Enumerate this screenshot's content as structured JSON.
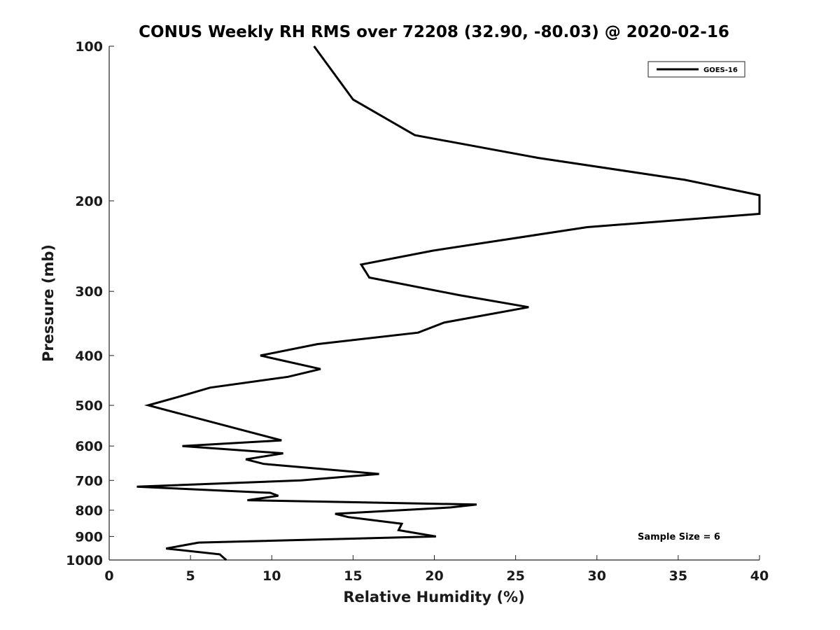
{
  "chart_data": {
    "type": "line",
    "title": "CONUS Weekly RH RMS over 72208 (32.90, -80.03) @ 2020-02-16",
    "xlabel": "Relative Humidity (%)",
    "ylabel": "Pressure (mb)",
    "xlim": [
      0,
      40
    ],
    "ylim": [
      100,
      1000
    ],
    "y_scale": "log",
    "y_reversed": true,
    "grid": false,
    "legend_position": "top-right",
    "x_ticks": [
      0,
      5,
      10,
      15,
      20,
      25,
      30,
      35,
      40
    ],
    "x_tick_labels": [
      "0",
      "5",
      "10",
      "15",
      "20",
      "25",
      "30",
      "35",
      "40"
    ],
    "y_ticks": [
      100,
      200,
      300,
      400,
      500,
      600,
      700,
      800,
      900,
      1000
    ],
    "y_tick_labels": [
      "100",
      "200",
      "300",
      "400",
      "500",
      "600",
      "700",
      "800",
      "900",
      "1000"
    ],
    "series": [
      {
        "name": "GOES-16",
        "color": "#000000",
        "points": [
          [
            7.2,
            1000
          ],
          [
            6.8,
            975
          ],
          [
            3.5,
            950
          ],
          [
            5.5,
            925
          ],
          [
            20.1,
            900
          ],
          [
            17.8,
            875
          ],
          [
            18.0,
            850
          ],
          [
            14.7,
            825
          ],
          [
            13.9,
            813
          ],
          [
            21.0,
            790
          ],
          [
            22.6,
            780
          ],
          [
            8.5,
            765
          ],
          [
            10.4,
            750
          ],
          [
            9.9,
            740
          ],
          [
            1.7,
            720
          ],
          [
            11.8,
            700
          ],
          [
            16.6,
            680
          ],
          [
            9.5,
            650
          ],
          [
            8.4,
            637
          ],
          [
            10.7,
            620
          ],
          [
            4.5,
            600
          ],
          [
            10.6,
            585
          ],
          [
            2.4,
            500
          ],
          [
            4.6,
            478
          ],
          [
            6.2,
            462
          ],
          [
            11.0,
            440
          ],
          [
            13.0,
            425
          ],
          [
            9.3,
            400
          ],
          [
            12.8,
            380
          ],
          [
            19.0,
            361
          ],
          [
            20.6,
            345
          ],
          [
            25.8,
            322
          ],
          [
            21.5,
            305
          ],
          [
            16.0,
            282
          ],
          [
            15.5,
            266
          ],
          [
            19.9,
            250
          ],
          [
            29.4,
            225
          ],
          [
            40.0,
            212
          ],
          [
            40.0,
            195
          ],
          [
            35.4,
            182
          ],
          [
            26.4,
            165
          ],
          [
            18.8,
            149
          ],
          [
            15.0,
            127
          ],
          [
            12.6,
            100
          ]
        ]
      }
    ],
    "annotations": [
      "Sample Size = 6"
    ]
  }
}
